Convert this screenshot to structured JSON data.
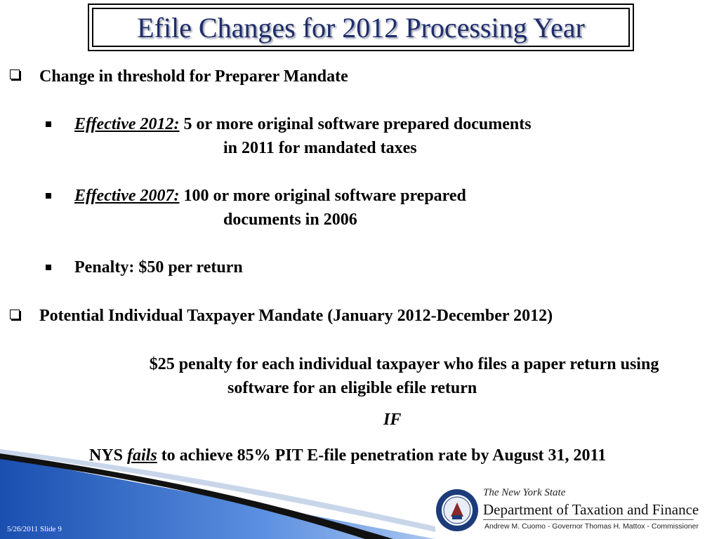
{
  "slide": {
    "title": "Efile Changes for 2012 Processing Year",
    "section1": {
      "heading": "Change in threshold for Preparer Mandate",
      "bullet1": {
        "label": "Effective 2012:",
        "line1": " 5 or more original software prepared documents",
        "line2": "in 2011 for mandated taxes"
      },
      "bullet2": {
        "label": "Effective 2007:",
        "line1": " 100 or more original software prepared",
        "line2": "documents in 2006"
      },
      "bullet3": {
        "text": "Penalty: $50 per return"
      }
    },
    "section2": {
      "heading": "Potential Individual Taxpayer Mandate (January 2012-December 2012)",
      "penalty_line1": "$25 penalty for each individual taxpayer who files a paper return using",
      "penalty_line2": "software for an eligible efile return",
      "if_text": "IF",
      "condition_prefix": "NYS ",
      "condition_emph": "fails",
      "condition_suffix": " to achieve 85% PIT E-file penetration rate by August 31, 2011"
    },
    "footer": {
      "date_slide": "5/26/2011 Slide 9",
      "dept_line1": "The New York State",
      "dept_line2": "Department of Taxation and Finance",
      "dept_line3": "Andrew M. Cuomo - Governor     Thomas H. Mattox - Commissioner"
    },
    "colors": {
      "title": "#1f2d6a",
      "wave_blue": "#2c63c4"
    }
  }
}
